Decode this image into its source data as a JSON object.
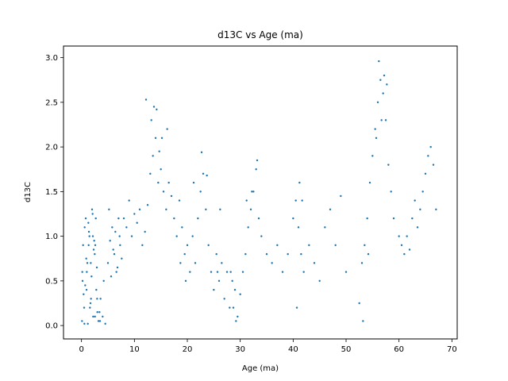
{
  "chart_data": {
    "type": "scatter",
    "title": "d13C vs Age (ma)",
    "xlabel": "Age (ma)",
    "ylabel": "d13C",
    "xlim": [
      -3.4,
      71.0
    ],
    "ylim": [
      -0.15,
      3.13
    ],
    "xticks": [
      0,
      10,
      20,
      30,
      40,
      50,
      60,
      70
    ],
    "xtick_labels": [
      "0",
      "10",
      "20",
      "30",
      "40",
      "50",
      "60",
      "70"
    ],
    "yticks": [
      0.0,
      0.5,
      1.0,
      1.5,
      2.0,
      2.5,
      3.0
    ],
    "ytick_labels": [
      "0.0",
      "0.5",
      "1.0",
      "1.5",
      "2.0",
      "2.5",
      "3.0"
    ],
    "grid": false,
    "legend": "none",
    "marker_color": "#1f77b4",
    "series": [
      {
        "x": [
          0.1,
          0.3,
          0.5,
          0.8,
          1.0,
          1.2,
          1.5,
          1.8,
          2.0,
          2.2,
          2.5,
          2.8,
          3.0,
          0.2,
          0.6,
          1.1,
          1.6,
          2.1,
          2.6,
          3.2,
          3.6,
          4.0,
          4.5,
          0.4,
          0.9,
          1.4,
          1.9,
          2.4,
          2.9,
          3.4,
          0.7,
          1.3,
          1.7,
          2.3,
          2.7,
          0.15,
          0.55,
          0.95,
          1.35,
          1.75,
          2.15,
          2.55,
          2.95,
          3.5,
          4.2,
          5.0,
          5.4,
          5.8,
          6.2,
          6.6,
          7.0,
          7.3,
          7.6,
          5.2,
          5.6,
          6.0,
          6.4,
          6.8,
          7.2,
          8.0,
          8.5,
          9.0,
          9.5,
          10.0,
          10.5,
          11.0,
          11.5,
          12.0,
          12.5,
          13.0,
          13.5,
          14.0,
          14.5,
          15.0,
          15.5,
          16.0,
          16.5,
          17.0,
          17.5,
          18.0,
          18.5,
          19.0,
          19.5,
          20.0,
          20.5,
          21.0,
          21.5,
          22.0,
          22.5,
          23.0,
          23.5,
          24.0,
          24.5,
          25.0,
          25.5,
          26.0,
          26.5,
          27.0,
          27.5,
          28.0,
          28.5,
          29.0,
          29.5,
          30.0,
          30.5,
          31.0,
          31.5,
          32.0,
          32.5,
          33.0,
          33.5,
          34.0,
          35.0,
          36.0,
          37.0,
          38.0,
          39.0,
          40.0,
          40.5,
          41.0,
          41.5,
          42.0,
          43.0,
          44.0,
          45.0,
          46.0,
          47.0,
          48.0,
          49.0,
          50.0,
          52.5,
          53.0,
          53.5,
          54.0,
          54.5,
          55.0,
          55.5,
          56.0,
          56.5,
          57.0,
          57.5,
          58.0,
          58.5,
          59.0,
          60.0,
          60.5,
          61.0,
          61.5,
          62.0,
          62.5,
          63.0,
          63.5,
          64.0,
          64.5,
          65.0,
          65.5,
          66.0,
          66.5,
          67.0,
          12.2,
          13.2,
          14.2,
          15.2,
          13.7,
          14.7,
          16.2,
          22.7,
          23.7,
          21.2,
          26.2,
          28.2,
          29.2,
          31.2,
          32.2,
          33.2,
          28.7,
          25.7,
          19.7,
          18.7,
          41.2,
          40.7,
          41.7,
          56.2,
          56.7,
          57.2,
          55.7,
          57.7,
          54.2,
          53.2
        ],
        "y": [
          0.05,
          0.9,
          0.2,
          1.2,
          0.6,
          0.02,
          1.0,
          0.3,
          1.3,
          0.1,
          0.8,
          0.4,
          0.15,
          0.5,
          1.1,
          0.7,
          0.2,
          1.25,
          0.9,
          0.05,
          0.3,
          0.1,
          0.02,
          0.35,
          0.75,
          1.05,
          0.55,
          0.95,
          0.65,
          0.15,
          0.45,
          1.15,
          0.25,
          0.85,
          1.2,
          0.6,
          0.02,
          0.4,
          0.9,
          0.7,
          1.0,
          0.1,
          0.3,
          0.05,
          0.5,
          0.7,
          0.95,
          1.1,
          0.8,
          0.6,
          1.2,
          0.9,
          0.75,
          1.3,
          0.55,
          0.85,
          1.05,
          0.65,
          1.0,
          1.2,
          1.1,
          1.4,
          1.0,
          1.25,
          1.15,
          1.3,
          0.9,
          1.05,
          1.35,
          1.7,
          1.9,
          2.1,
          1.6,
          1.75,
          1.5,
          1.3,
          1.6,
          1.45,
          1.2,
          1.0,
          1.4,
          1.1,
          0.8,
          0.9,
          0.6,
          1.0,
          0.7,
          1.2,
          1.5,
          1.7,
          1.3,
          0.9,
          0.6,
          0.4,
          0.8,
          0.5,
          0.7,
          0.3,
          0.6,
          0.2,
          0.5,
          0.4,
          0.1,
          0.35,
          0.6,
          0.8,
          1.1,
          1.3,
          1.5,
          1.75,
          1.2,
          1.0,
          0.8,
          0.7,
          0.9,
          0.6,
          0.8,
          1.2,
          1.4,
          1.1,
          0.8,
          0.6,
          0.9,
          0.7,
          0.5,
          1.1,
          1.3,
          0.9,
          1.45,
          0.6,
          0.25,
          0.7,
          0.9,
          1.2,
          1.6,
          1.9,
          2.2,
          2.5,
          2.75,
          2.6,
          2.3,
          1.8,
          1.5,
          1.2,
          1.0,
          0.9,
          0.8,
          1.0,
          0.85,
          1.2,
          1.4,
          1.1,
          1.3,
          1.5,
          1.7,
          1.9,
          2.0,
          1.8,
          1.3,
          2.53,
          2.3,
          2.42,
          2.1,
          2.45,
          1.95,
          2.2,
          1.94,
          1.68,
          1.6,
          1.3,
          0.6,
          0.05,
          1.4,
          1.5,
          1.85,
          0.2,
          0.6,
          0.5,
          0.7,
          1.6,
          0.2,
          1.4,
          2.96,
          2.3,
          2.8,
          2.1,
          2.7,
          0.8,
          0.05
        ]
      }
    ]
  }
}
